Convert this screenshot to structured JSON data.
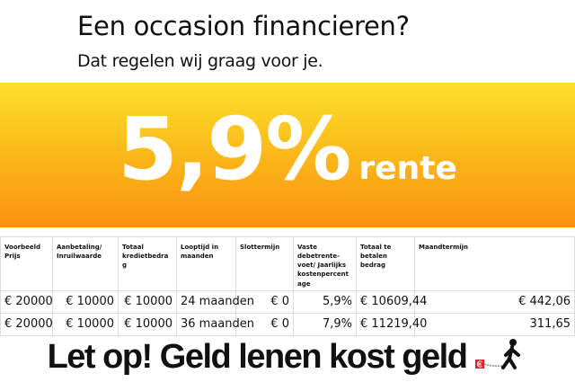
{
  "header": {
    "title": "Een occasion financieren?",
    "subtitle": "Dat regelen wij graag voor je."
  },
  "promo": {
    "rate": "5,9%",
    "label": "rente",
    "colors": {
      "top": "#fde02c",
      "bottom": "#fb9212"
    }
  },
  "table": {
    "headers": [
      "Voorbeeld Prijs",
      "Aanbetaling/ Inruilwaarde",
      "Totaal kredietbedrag",
      "Looptijd in maanden",
      "Slottermijn",
      "Vaste debetrente-voet/ Jaarlijks kostenpercentage",
      "Totaal te betalen bedrag",
      "Maandtermijn"
    ],
    "rows": [
      [
        "€ 20000",
        "€ 10000",
        "€ 10000",
        "24 maanden",
        "€ 0",
        "5,9%",
        "€ 10609,44",
        "€ 442,06"
      ],
      [
        "€ 20000",
        "€ 10000",
        "€ 10000",
        "36 maanden",
        "€ 0",
        "7,9%",
        "€ 11219,40",
        "311,65"
      ]
    ]
  },
  "warning": {
    "text": "Let op! Geld lenen kost geld",
    "icon": "walking-man-chained-euro-icon"
  }
}
